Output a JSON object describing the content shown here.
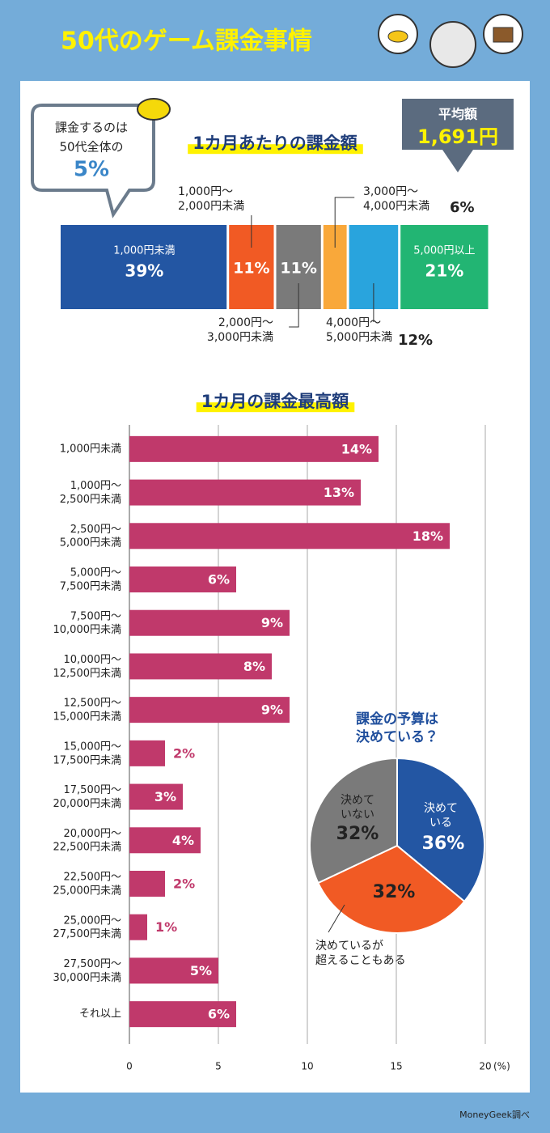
{
  "title": "50代のゲーム課金事情",
  "callout": {
    "lines": [
      "課金するのは",
      "50代全体の"
    ],
    "highlight": "5%"
  },
  "average": {
    "label": "平均額",
    "value": "1,691円"
  },
  "source": "MoneyGeek調べ",
  "chart_data": [
    {
      "type": "stacked-bar",
      "title": "1カ月あたりの課金額",
      "series": [
        {
          "name": "1,000円未満",
          "color": "#2356a3",
          "values": [
            39
          ],
          "value_labels": [
            "39%"
          ]
        },
        {
          "name": "1,000円～\n2,000円未満",
          "color": "#f15a24",
          "values": [
            11
          ],
          "value_labels": [
            "11%"
          ]
        },
        {
          "name": "2,000円～\n3,000円未満",
          "color": "#7a7a7a",
          "values": [
            11
          ],
          "value_labels": [
            "11%"
          ]
        },
        {
          "name": "3,000円～\n4,000円未満",
          "color": "#f9a83a",
          "values": [
            6
          ],
          "value_labels": [
            "6%"
          ]
        },
        {
          "name": "4,000円～\n5,000円未満",
          "color": "#29a4dd",
          "values": [
            12
          ],
          "value_labels": [
            "12%"
          ]
        },
        {
          "name": "5,000円以上",
          "color": "#22b573",
          "values": [
            21
          ],
          "value_labels": [
            "21%"
          ]
        }
      ]
    },
    {
      "type": "hbar",
      "title": "1カ月の課金最高額",
      "categories": [
        "1,000円未満",
        "1,000円～\n2,500円未満",
        "2,500円～\n5,000円未満",
        "5,000円～\n7,500円未満",
        "7,500円～\n10,000円未満",
        "10,000円～\n12,500円未満",
        "12,500円～\n15,000円未満",
        "15,000円～\n17,500円未満",
        "17,500円～\n20,000円未満",
        "20,000円～\n22,500円未満",
        "22,500円～\n25,000円未満",
        "25,000円～\n27,500円未満",
        "27,500円～\n30,000円未満",
        "それ以上"
      ],
      "values": [
        14,
        13,
        18,
        6,
        9,
        8,
        9,
        2,
        3,
        4,
        2,
        1,
        5,
        6
      ],
      "value_labels": [
        "14%",
        "13%",
        "18%",
        "6%",
        "9%",
        "8%",
        "9%",
        "2%",
        "3%",
        "4%",
        "2%",
        "1%",
        "5%",
        "6%"
      ],
      "color": "#c0396b",
      "xlim": [
        0,
        20
      ],
      "xticks": [
        0,
        5,
        10,
        15,
        20
      ],
      "xlabel": "(%)",
      "grid": true
    },
    {
      "type": "pie",
      "title": "課金の予算は\n決めている？",
      "categories": [
        "決めて\nいる",
        "決めているが\n超えることもある",
        "決めて\nいない"
      ],
      "values": [
        36,
        32,
        32
      ],
      "value_labels": [
        "36%",
        "32%",
        "32%"
      ],
      "colors": [
        "#2356a3",
        "#f15a24",
        "#7a7a7a"
      ]
    }
  ]
}
